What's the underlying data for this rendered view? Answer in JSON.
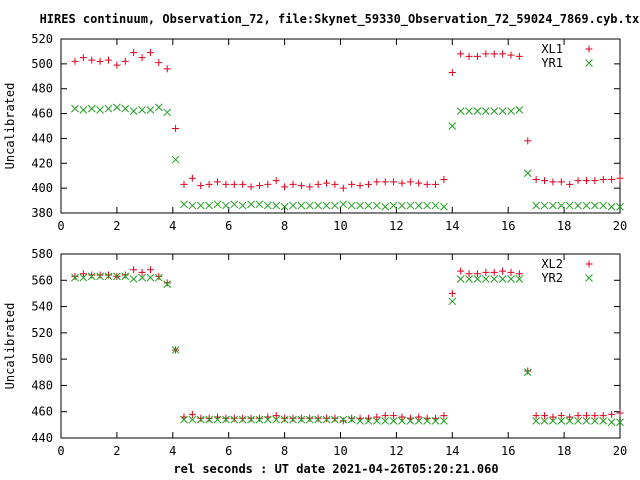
{
  "title": "HIRES continuum, Observation_72, file:Skynet_59330_Observation_72_59024_7869.cyb.txt",
  "xlabel": "rel seconds : UT date 2021-04-26T05:20:21.060",
  "colors": {
    "red": "#e0001c",
    "green": "#20a020",
    "axis": "#000000"
  },
  "chart_data": [
    {
      "type": "scatter",
      "ylabel": "Uncalibrated",
      "xlim": [
        0,
        20
      ],
      "ylim": [
        380,
        520
      ],
      "xticks": [
        0,
        2,
        4,
        6,
        8,
        10,
        12,
        14,
        16,
        18,
        20
      ],
      "yticks": [
        380,
        400,
        420,
        440,
        460,
        480,
        500,
        520
      ],
      "grid": false,
      "legend": "top-right",
      "series": [
        {
          "name": "XL1",
          "marker": "plus",
          "color": "#e0001c",
          "x": [
            0.5,
            0.8,
            1.1,
            1.4,
            1.7,
            2.0,
            2.3,
            2.6,
            2.9,
            3.2,
            3.5,
            3.8,
            4.1,
            4.4,
            4.7,
            5.0,
            5.3,
            5.6,
            5.9,
            6.2,
            6.5,
            6.8,
            7.1,
            7.4,
            7.7,
            8.0,
            8.3,
            8.6,
            8.9,
            9.2,
            9.5,
            9.8,
            10.1,
            10.4,
            10.7,
            11.0,
            11.3,
            11.6,
            11.9,
            12.2,
            12.5,
            12.8,
            13.1,
            13.4,
            13.7,
            14.0,
            14.3,
            14.6,
            14.9,
            15.2,
            15.5,
            15.8,
            16.1,
            16.4,
            16.7,
            17.0,
            17.3,
            17.6,
            17.9,
            18.2,
            18.5,
            18.8,
            19.1,
            19.4,
            19.7,
            20.0
          ],
          "y": [
            502,
            505,
            503,
            502,
            503,
            499,
            502,
            509,
            505,
            509,
            501,
            496,
            448,
            403,
            408,
            402,
            403,
            405,
            403,
            403,
            403,
            401,
            402,
            403,
            406,
            401,
            403,
            402,
            401,
            403,
            404,
            403,
            400,
            403,
            402,
            403,
            405,
            405,
            405,
            404,
            405,
            404,
            403,
            403,
            407,
            493,
            508,
            506,
            506,
            508,
            508,
            508,
            507,
            506,
            438,
            407,
            406,
            405,
            405,
            403,
            406,
            406,
            406,
            407,
            407,
            408
          ]
        },
        {
          "name": "YR1",
          "marker": "cross",
          "color": "#20a020",
          "x": [
            0.5,
            0.8,
            1.1,
            1.4,
            1.7,
            2.0,
            2.3,
            2.6,
            2.9,
            3.2,
            3.5,
            3.8,
            4.1,
            4.4,
            4.7,
            5.0,
            5.3,
            5.6,
            5.9,
            6.2,
            6.5,
            6.8,
            7.1,
            7.4,
            7.7,
            8.0,
            8.3,
            8.6,
            8.9,
            9.2,
            9.5,
            9.8,
            10.1,
            10.4,
            10.7,
            11.0,
            11.3,
            11.6,
            11.9,
            12.2,
            12.5,
            12.8,
            13.1,
            13.4,
            13.7,
            14.0,
            14.3,
            14.6,
            14.9,
            15.2,
            15.5,
            15.8,
            16.1,
            16.4,
            16.7,
            17.0,
            17.3,
            17.6,
            17.9,
            18.2,
            18.5,
            18.8,
            19.1,
            19.4,
            19.7,
            20.0
          ],
          "y": [
            464,
            463,
            464,
            463,
            464,
            465,
            464,
            462,
            463,
            463,
            465,
            461,
            423,
            387,
            386,
            386,
            386,
            387,
            386,
            387,
            386,
            387,
            387,
            386,
            386,
            385,
            386,
            386,
            386,
            386,
            386,
            386,
            387,
            386,
            386,
            386,
            386,
            385,
            386,
            386,
            386,
            386,
            386,
            386,
            385,
            450,
            462,
            462,
            462,
            462,
            462,
            462,
            462,
            463,
            412,
            386,
            386,
            386,
            386,
            386,
            386,
            386,
            386,
            386,
            385,
            385
          ]
        }
      ]
    },
    {
      "type": "scatter",
      "ylabel": "Uncalibrated",
      "xlim": [
        0,
        20
      ],
      "ylim": [
        440,
        580
      ],
      "xticks": [
        0,
        2,
        4,
        6,
        8,
        10,
        12,
        14,
        16,
        18,
        20
      ],
      "yticks": [
        440,
        460,
        480,
        500,
        520,
        540,
        560,
        580
      ],
      "grid": false,
      "legend": "top-right",
      "series": [
        {
          "name": "XL2",
          "marker": "plus",
          "color": "#e0001c",
          "x": [
            0.5,
            0.8,
            1.1,
            1.4,
            1.7,
            2.0,
            2.3,
            2.6,
            2.9,
            3.2,
            3.5,
            3.8,
            4.1,
            4.4,
            4.7,
            5.0,
            5.3,
            5.6,
            5.9,
            6.2,
            6.5,
            6.8,
            7.1,
            7.4,
            7.7,
            8.0,
            8.3,
            8.6,
            8.9,
            9.2,
            9.5,
            9.8,
            10.1,
            10.4,
            10.7,
            11.0,
            11.3,
            11.6,
            11.9,
            12.2,
            12.5,
            12.8,
            13.1,
            13.4,
            13.7,
            14.0,
            14.3,
            14.6,
            14.9,
            15.2,
            15.5,
            15.8,
            16.1,
            16.4,
            16.7,
            17.0,
            17.3,
            17.6,
            17.9,
            18.2,
            18.5,
            18.8,
            19.1,
            19.4,
            19.7,
            20.0
          ],
          "y": [
            563,
            565,
            564,
            564,
            564,
            563,
            564,
            568,
            566,
            568,
            563,
            558,
            507,
            456,
            458,
            455,
            455,
            456,
            455,
            455,
            455,
            455,
            455,
            456,
            457,
            455,
            455,
            455,
            455,
            455,
            455,
            455,
            453,
            455,
            455,
            455,
            456,
            457,
            457,
            456,
            455,
            456,
            455,
            455,
            457,
            550,
            567,
            565,
            565,
            566,
            566,
            567,
            566,
            565,
            491,
            457,
            457,
            456,
            457,
            456,
            457,
            457,
            457,
            457,
            458,
            459
          ]
        },
        {
          "name": "YR2",
          "marker": "cross",
          "color": "#20a020",
          "x": [
            0.5,
            0.8,
            1.1,
            1.4,
            1.7,
            2.0,
            2.3,
            2.6,
            2.9,
            3.2,
            3.5,
            3.8,
            4.1,
            4.4,
            4.7,
            5.0,
            5.3,
            5.6,
            5.9,
            6.2,
            6.5,
            6.8,
            7.1,
            7.4,
            7.7,
            8.0,
            8.3,
            8.6,
            8.9,
            9.2,
            9.5,
            9.8,
            10.1,
            10.4,
            10.7,
            11.0,
            11.3,
            11.6,
            11.9,
            12.2,
            12.5,
            12.8,
            13.1,
            13.4,
            13.7,
            14.0,
            14.3,
            14.6,
            14.9,
            15.2,
            15.5,
            15.8,
            16.1,
            16.4,
            16.7,
            17.0,
            17.3,
            17.6,
            17.9,
            18.2,
            18.5,
            18.8,
            19.1,
            19.4,
            19.7,
            20.0
          ],
          "y": [
            562,
            562,
            563,
            563,
            563,
            563,
            563,
            561,
            562,
            562,
            562,
            557,
            507,
            454,
            454,
            454,
            454,
            454,
            454,
            454,
            454,
            454,
            454,
            454,
            454,
            454,
            454,
            454,
            454,
            454,
            454,
            454,
            454,
            454,
            453,
            453,
            453,
            453,
            453,
            453,
            453,
            453,
            453,
            453,
            453,
            544,
            561,
            561,
            561,
            561,
            561,
            561,
            561,
            561,
            490,
            453,
            453,
            453,
            453,
            453,
            453,
            453,
            453,
            453,
            452,
            452
          ]
        }
      ]
    }
  ]
}
